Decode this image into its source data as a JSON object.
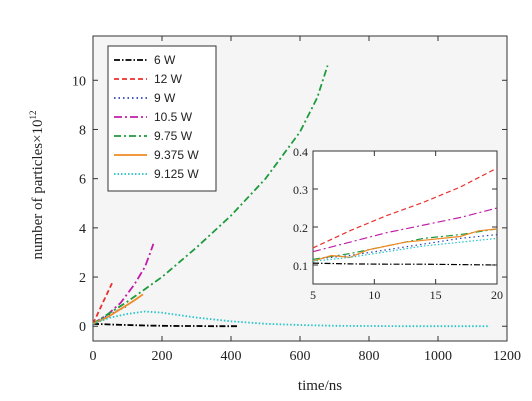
{
  "chart_data": [
    {
      "type": "line",
      "xlabel": "time/ns",
      "ylabel": "number of particles×10",
      "ylabel_exp": "12",
      "xlim": [
        0,
        1200
      ],
      "ylim": [
        -0.6,
        11.8
      ],
      "xticks": [
        0,
        200,
        400,
        600,
        800,
        1000,
        1200
      ],
      "yticks": [
        0,
        2,
        4,
        6,
        8,
        10
      ],
      "xtick_labels": [
        "0",
        "200",
        "400",
        "600",
        "800",
        "1000",
        "1200"
      ],
      "ytick_labels": [
        "0",
        "2",
        "4",
        "6",
        "8",
        "10"
      ],
      "legend_position": "top-left",
      "series": [
        {
          "name": "6 W",
          "color": "#000000",
          "dash": "6,2,1.5,2",
          "x": [
            0,
            50,
            100,
            150,
            200,
            250,
            300,
            350,
            400,
            420
          ],
          "y": [
            0.1,
            0.07,
            0.05,
            0.03,
            0.02,
            0.01,
            0.01,
            0.0,
            0.0,
            0.0
          ]
        },
        {
          "name": "12 W",
          "color": "#e8312f",
          "dash": "5,3",
          "x": [
            0,
            10,
            20,
            30,
            40,
            50,
            55
          ],
          "y": [
            0.1,
            0.4,
            0.7,
            1.0,
            1.3,
            1.6,
            1.75
          ]
        },
        {
          "name": "9 W",
          "color": "#2a3fb8",
          "dash": "1.5,3",
          "x": [
            0,
            20,
            40,
            60,
            80,
            95
          ],
          "y": [
            0.1,
            0.25,
            0.4,
            0.55,
            0.7,
            0.8
          ]
        },
        {
          "name": "10.5 W",
          "color": "#c01ea8",
          "dash": "8,3,2,3",
          "x": [
            0,
            40,
            80,
            120,
            150,
            165,
            175
          ],
          "y": [
            0.1,
            0.45,
            0.95,
            1.7,
            2.4,
            2.95,
            3.35
          ]
        },
        {
          "name": "9.75 W",
          "color": "#1e9b3d",
          "dash": "7,3,2,3",
          "x": [
            0,
            100,
            200,
            300,
            400,
            500,
            600,
            650,
            680
          ],
          "y": [
            0.1,
            1.0,
            2.0,
            3.2,
            4.5,
            6.0,
            7.9,
            9.3,
            10.6
          ]
        },
        {
          "name": "9.375 W",
          "color": "#f08a24",
          "dash": "",
          "x": [
            0,
            40,
            80,
            120,
            145
          ],
          "y": [
            0.1,
            0.35,
            0.7,
            1.05,
            1.3
          ]
        },
        {
          "name": "9.125 W",
          "color": "#23c4c9",
          "dash": "1.5,2",
          "x": [
            0,
            50,
            100,
            150,
            200,
            300,
            400,
            500,
            600,
            700,
            800,
            900,
            1000,
            1100,
            1150
          ],
          "y": [
            0.1,
            0.35,
            0.5,
            0.6,
            0.55,
            0.35,
            0.2,
            0.1,
            0.05,
            0.02,
            0.01,
            0.0,
            0.0,
            0.0,
            0.0
          ]
        }
      ]
    },
    {
      "type": "line",
      "position": "inset",
      "xlim": [
        5,
        20
      ],
      "ylim": [
        0.05,
        0.4
      ],
      "xticks": [
        5,
        10,
        15,
        20
      ],
      "yticks": [
        0.1,
        0.2,
        0.3,
        0.4
      ],
      "xtick_labels": [
        "5",
        "10",
        "15",
        "20"
      ],
      "ytick_labels": [
        "0.1",
        "0.2",
        "0.3",
        "0.4"
      ],
      "series": [
        {
          "name": "6 W",
          "color": "#000000",
          "dash": "6,2,1.5,2",
          "x": [
            5,
            8,
            11,
            14,
            17,
            20
          ],
          "y": [
            0.105,
            0.103,
            0.102,
            0.102,
            0.101,
            0.1
          ]
        },
        {
          "name": "12 W",
          "color": "#e8312f",
          "dash": "5,3",
          "x": [
            5,
            8,
            11,
            14,
            17,
            20
          ],
          "y": [
            0.145,
            0.19,
            0.23,
            0.265,
            0.305,
            0.355
          ]
        },
        {
          "name": "9 W",
          "color": "#2a3fb8",
          "dash": "1.5,3",
          "x": [
            5,
            8,
            11,
            14,
            17,
            20
          ],
          "y": [
            0.115,
            0.125,
            0.14,
            0.155,
            0.17,
            0.18
          ]
        },
        {
          "name": "10.5 W",
          "color": "#c01ea8",
          "dash": "8,3,2,3",
          "x": [
            5,
            8,
            11,
            14,
            17,
            20
          ],
          "y": [
            0.135,
            0.16,
            0.185,
            0.205,
            0.225,
            0.25
          ]
        },
        {
          "name": "9.75 W",
          "color": "#1e9b3d",
          "dash": "7,3,2,3",
          "x": [
            5,
            8,
            11,
            14,
            17,
            20
          ],
          "y": [
            0.115,
            0.13,
            0.15,
            0.17,
            0.18,
            0.195
          ]
        },
        {
          "name": "9.375 W",
          "color": "#f08a24",
          "dash": "",
          "x": [
            5,
            6.5,
            8,
            9.5,
            11,
            12.5,
            14,
            15.5,
            17,
            18.5,
            20
          ],
          "y": [
            0.11,
            0.125,
            0.12,
            0.14,
            0.15,
            0.16,
            0.165,
            0.17,
            0.175,
            0.19,
            0.195
          ]
        },
        {
          "name": "9.125 W",
          "color": "#23c4c9",
          "dash": "1.5,2",
          "x": [
            5,
            8,
            11,
            14,
            17,
            20
          ],
          "y": [
            0.11,
            0.12,
            0.135,
            0.15,
            0.16,
            0.17
          ]
        }
      ]
    }
  ]
}
